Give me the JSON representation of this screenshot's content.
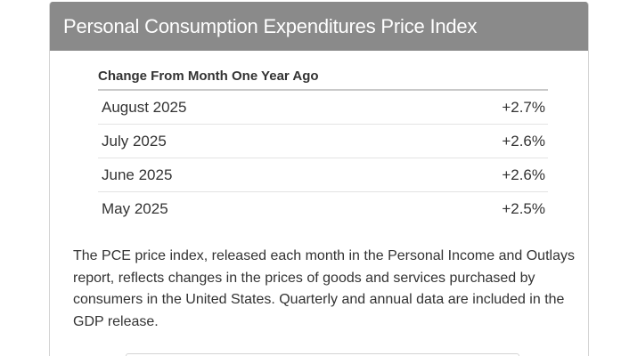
{
  "card": {
    "title": "Personal Consumption Expenditures Price Index",
    "section_label": "Change From Month One Year Ago",
    "rows": [
      {
        "month": "August 2025",
        "change": "+2.7%"
      },
      {
        "month": "July 2025",
        "change": "+2.6%"
      },
      {
        "month": "June 2025",
        "change": "+2.6%"
      },
      {
        "month": "May 2025",
        "change": "+2.5%"
      }
    ],
    "description": "The PCE price index, released each month in the Personal Income and Outlays report, reflects changes in the prices of goods and services purchased by consumers in the United States. Quarterly and annual data are included in the GDP release."
  },
  "colors": {
    "header_background": "#8a8a8a",
    "header_text": "#ffffff",
    "body_text": "#333333",
    "divider": "#e3e3e3"
  }
}
